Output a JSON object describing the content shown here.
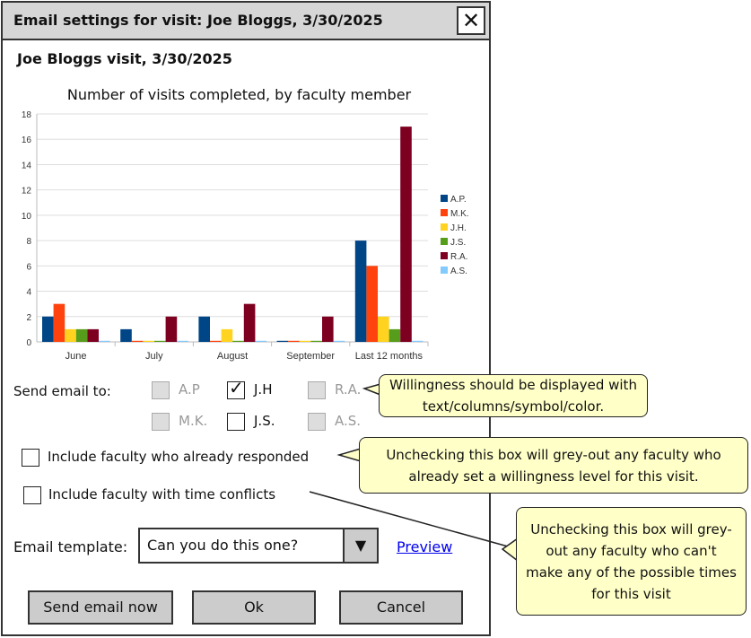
{
  "window": {
    "title": "Email settings for visit: Joe Bloggs, 3/30/2025",
    "close_icon": "close-x-icon"
  },
  "visit_heading": "Joe Bloggs visit, 3/30/2025",
  "chart_data": {
    "type": "bar",
    "title": "Number of visits completed, by faculty member",
    "categories": [
      "June",
      "July",
      "August",
      "September",
      "Last 12 months"
    ],
    "series": [
      {
        "name": "A.P.",
        "color": "#004586",
        "values": [
          2,
          1,
          2,
          0,
          8
        ]
      },
      {
        "name": "M.K.",
        "color": "#ff420e",
        "values": [
          3,
          0,
          0,
          0,
          6
        ]
      },
      {
        "name": "J.H.",
        "color": "#ffd320",
        "values": [
          1,
          0,
          1,
          0,
          2
        ]
      },
      {
        "name": "J.S.",
        "color": "#579d1c",
        "values": [
          1,
          0,
          0,
          0,
          1
        ]
      },
      {
        "name": "R.A.",
        "color": "#7e0021",
        "values": [
          1,
          2,
          3,
          2,
          17
        ]
      },
      {
        "name": "A.S.",
        "color": "#83caff",
        "values": [
          0,
          0,
          0,
          0,
          0
        ]
      }
    ],
    "ylim": [
      0,
      18
    ],
    "yticks": [
      "0",
      "2",
      "4",
      "6",
      "8",
      "10",
      "12",
      "14",
      "16",
      "18"
    ],
    "grid": true,
    "legend": "right"
  },
  "send_to": {
    "label": "Send email to:",
    "faculty": [
      {
        "name": "A.P",
        "checked": false,
        "disabled": true
      },
      {
        "name": "J.H",
        "checked": true,
        "disabled": false
      },
      {
        "name": "R.A.",
        "checked": false,
        "disabled": true
      },
      {
        "name": "M.K.",
        "checked": false,
        "disabled": true
      },
      {
        "name": "J.S.",
        "checked": false,
        "disabled": false
      },
      {
        "name": "A.S.",
        "checked": false,
        "disabled": true
      }
    ]
  },
  "options": {
    "responded": {
      "label": "Include faculty who already responded",
      "checked": false
    },
    "conflicts": {
      "label": "Include faculty with time conflicts",
      "checked": false
    }
  },
  "template": {
    "label": "Email template:",
    "value": "Can you do this one?",
    "preview": "Preview"
  },
  "buttons": {
    "send": "Send email now",
    "ok": "Ok",
    "cancel": "Cancel"
  },
  "callouts": {
    "willingness": "Willingness should be displayed with text/columns/symbol/color.",
    "responded": "Unchecking this box will grey-out any faculty who already set a willingness level for this visit.",
    "conflicts": "Unchecking this box will grey-out any faculty who can't make any of the possible times for this visit"
  }
}
